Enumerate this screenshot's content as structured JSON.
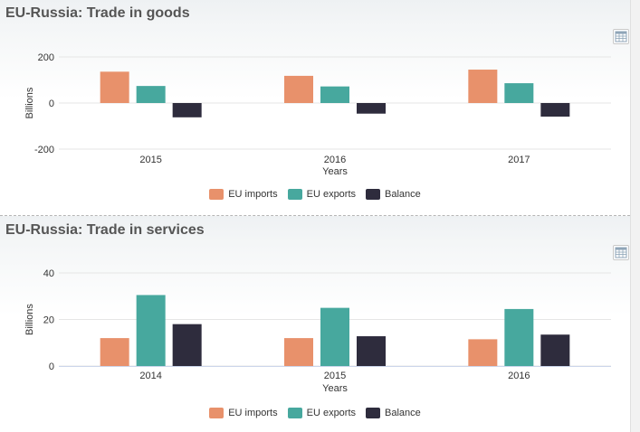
{
  "charts": [
    {
      "title": "EU-Russia: Trade in goods",
      "menu_icon": "table-icon",
      "chart_data": {
        "type": "bar",
        "categories": [
          "2015",
          "2016",
          "2017"
        ],
        "series": [
          {
            "name": "EU imports",
            "color": "#e8916b",
            "values": [
              136,
              118,
              145
            ]
          },
          {
            "name": "EU exports",
            "color": "#47a89e",
            "values": [
              74,
              72,
              86
            ]
          },
          {
            "name": "Balance",
            "color": "#2e2c3d",
            "values": [
              -62,
              -46,
              -59
            ]
          }
        ],
        "xlabel": "Years",
        "ylabel": "Billions",
        "ylim": [
          -200,
          200
        ],
        "yticks": [
          200,
          0,
          -200
        ],
        "grid": true,
        "legend": "bottom-center"
      }
    },
    {
      "title": "EU-Russia: Trade in services",
      "menu_icon": "table-icon",
      "chart_data": {
        "type": "bar",
        "categories": [
          "2014",
          "2015",
          "2016"
        ],
        "series": [
          {
            "name": "EU imports",
            "color": "#e8916b",
            "values": [
              12,
              12,
              11.5
            ]
          },
          {
            "name": "EU exports",
            "color": "#47a89e",
            "values": [
              30.5,
              25,
              24.5
            ]
          },
          {
            "name": "Balance",
            "color": "#2e2c3d",
            "values": [
              18,
              12.8,
              13.5
            ]
          }
        ],
        "xlabel": "Years",
        "ylabel": "Billions",
        "ylim": [
          0,
          40
        ],
        "yticks": [
          40,
          20,
          0
        ],
        "grid": true,
        "legend": "bottom-center"
      }
    }
  ]
}
